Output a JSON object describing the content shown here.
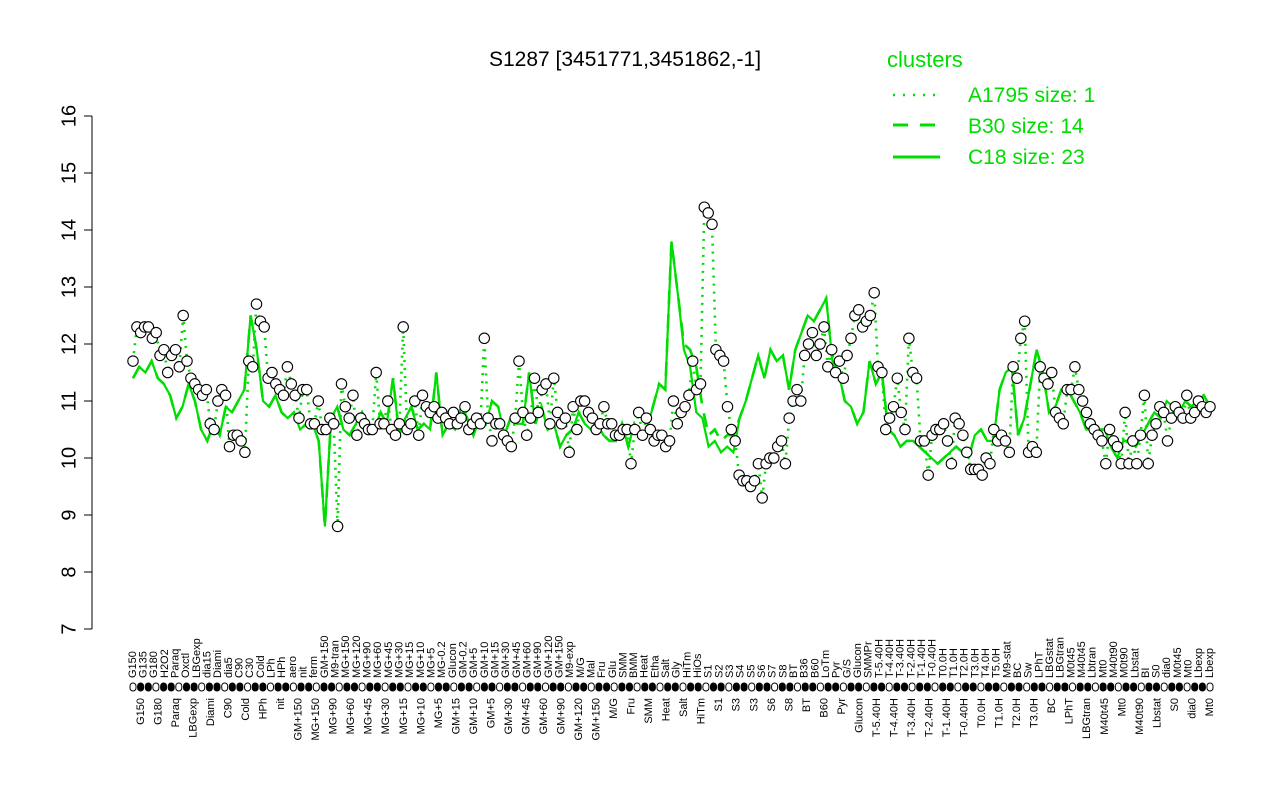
{
  "colors": {
    "line": "#00dd00",
    "points": "#000000",
    "point_fill": "#ffffff",
    "rug": "#000000"
  },
  "chart_data": {
    "type": "line",
    "title": "S1287 [3451771,3451862,-1]",
    "xlabel": "",
    "ylabel": "",
    "ylim": [
      7,
      16
    ],
    "yticks": [
      7,
      8,
      9,
      10,
      11,
      12,
      13,
      14,
      15,
      16
    ],
    "grid": false,
    "legend_position": "top-right",
    "legend": {
      "title": "clusters",
      "entries": [
        {
          "label": "A1795 size: 1",
          "style": "dotted"
        },
        {
          "label": "B30 size: 14",
          "style": "dashed"
        },
        {
          "label": "C18 size: 23",
          "style": "solid"
        }
      ]
    },
    "x_top_labels": [
      "G150",
      "G135",
      "G180",
      "H2O2",
      "Paraq",
      "Oxctl",
      "LBGexp",
      "dia15",
      "Diami",
      "dia5",
      "C90",
      "C30",
      "Cold",
      "LPh",
      "HPh",
      "aero",
      "nit",
      "ferm",
      "GM+150",
      "M9-tran",
      "MG+150",
      "MG+120",
      "MG+90",
      "MG+60",
      "MG+45",
      "MG+30",
      "MG+15",
      "MG+10",
      "MG+5",
      "MG-0.2",
      "Glucon",
      "GM-0.2",
      "GM+5",
      "GM+10",
      "GM+15",
      "GM+30",
      "GM+45",
      "GM+60",
      "GM+90",
      "GM+120",
      "GM+150",
      "M9-exp",
      "M/G",
      "Mal",
      "Fru",
      "Glu",
      "SMM",
      "BMM",
      "Heat",
      "Etha",
      "Salt",
      "Gly",
      "HiTm",
      "HiOs",
      "S1",
      "S2",
      "S3",
      "S4",
      "S5",
      "S6",
      "S7",
      "S8",
      "BT",
      "B36",
      "B60",
      "LoTm",
      "Pyr",
      "G/S",
      "Glucon",
      "SMMPr",
      "T-5.40H",
      "T-4.40H",
      "T-3.40H",
      "T-2.40H",
      "T-1.40H",
      "T-0.40H",
      "T0.0H",
      "T1.0H",
      "T2.0H",
      "T3.0H",
      "T4.0H",
      "T5.0H",
      "M9-stat",
      "BC",
      "Sw",
      "LPhT",
      "LBGstat",
      "LBGtran",
      "M0t45",
      "M40t45",
      "Lbtran",
      "Mt0",
      "M40t90",
      "M0t90",
      "Lbstat",
      "BI",
      "S0",
      "dia0",
      "M0t45",
      "Mt0",
      "Lbexp",
      "Lbexp"
    ],
    "x_bottom_labels": [
      "G150",
      "G180",
      "Paraq",
      "LBGexp",
      "Diami",
      "C90",
      "Cold",
      "HPh",
      "nit",
      "GM+150",
      "MG+150",
      "MG+90",
      "MG+60",
      "MG+45",
      "MG+30",
      "MG+15",
      "MG+10",
      "MG+5",
      "GM+15",
      "GM+10",
      "GM+5",
      "GM+30",
      "GM+45",
      "GM+60",
      "GM+90",
      "GM+120",
      "GM+150",
      "M/G",
      "Fru",
      "SMM",
      "Heat",
      "Salt",
      "HiTm",
      "S1",
      "S3",
      "S3",
      "S6",
      "S8",
      "BT",
      "B60",
      "Pyr",
      "Glucon",
      "T-5.40H",
      "T-4.40H",
      "T-3.40H",
      "T-2.40H",
      "T-1.40H",
      "T-0.40H",
      "T0.0H",
      "T1.0H",
      "T2.0H",
      "T3.0H",
      "BC",
      "LPhT",
      "LBGtran",
      "M40t45",
      "Mt0",
      "M40t90",
      "Lbstat",
      "S0",
      "dia0",
      "Mt0"
    ],
    "series": [
      {
        "name": "C18 size: 23",
        "style": "solid",
        "values": [
          11.4,
          11.6,
          11.5,
          11.7,
          11.4,
          11.3,
          11.1,
          10.7,
          10.9,
          11.3,
          11.0,
          10.5,
          10.3,
          10.6,
          10.4,
          10.9,
          10.8,
          11.0,
          11.2,
          12.5,
          11.9,
          11.0,
          10.9,
          11.1,
          10.8,
          10.7,
          10.8,
          10.5,
          10.6,
          10.6,
          10.3,
          8.8,
          10.7,
          10.9,
          10.5,
          10.4,
          10.6,
          10.8,
          10.5,
          10.5,
          10.8,
          10.6,
          11.4,
          10.4,
          10.7,
          10.9,
          10.5,
          10.6,
          10.5,
          11.5,
          10.4,
          10.6,
          10.5,
          10.9,
          10.7,
          10.4,
          10.7,
          10.6,
          11.0,
          10.9,
          10.4,
          10.7,
          10.6,
          10.6,
          11.5,
          10.6,
          10.9,
          10.5,
          10.6,
          10.2,
          10.4,
          10.5,
          10.8,
          10.6,
          10.5,
          10.6,
          10.4,
          10.3,
          10.3,
          10.6,
          10.2,
          10.6,
          10.4,
          10.5,
          10.9,
          11.3,
          11.2,
          13.8,
          12.9,
          11.9,
          11.6,
          10.8,
          10.7,
          10.2,
          10.3,
          10.1,
          10.2,
          10.1,
          10.7,
          11.0,
          11.4,
          11.8,
          11.4,
          11.9,
          11.7,
          11.8,
          11.2,
          11.9,
          12.2,
          12.5,
          12.4,
          12.6,
          12.8,
          11.7,
          11.5,
          11.0,
          10.9,
          10.6,
          10.8,
          11.7,
          11.3,
          11.5,
          10.5,
          10.4,
          10.2,
          10.3,
          10.3,
          10.2,
          10.1,
          10.0,
          9.9,
          10.0,
          10.1,
          10.2,
          10.1,
          10.0,
          10.4,
          10.5,
          10.3,
          10.3,
          11.2,
          11.5,
          11.6,
          10.4,
          10.7,
          11.3,
          11.9,
          11.5,
          10.8,
          10.9,
          11.2,
          11.2,
          11.0,
          10.8,
          10.5,
          10.5,
          10.5,
          10.5,
          10.2,
          10.0,
          10.3,
          10.3,
          10.2,
          10.4,
          10.6,
          10.8,
          10.7,
          11.0,
          10.9,
          10.8,
          11.0,
          10.9,
          11.0,
          11.1,
          10.9
        ]
      },
      {
        "name": "B30 size: 14",
        "style": "dashed",
        "values": [
          11.4,
          11.6,
          11.5,
          11.7,
          11.4,
          11.3,
          11.1,
          10.7,
          10.9,
          11.3,
          11.0,
          10.5,
          10.3,
          10.6,
          10.4,
          10.9,
          10.8,
          11.0,
          11.2,
          12.5,
          11.9,
          11.0,
          10.9,
          11.1,
          10.8,
          10.7,
          10.8,
          10.5,
          10.6,
          10.6,
          10.3,
          8.8,
          10.7,
          10.9,
          10.5,
          10.4,
          10.6,
          10.8,
          10.5,
          10.5,
          10.8,
          10.6,
          11.4,
          10.4,
          10.7,
          10.9,
          10.5,
          10.6,
          10.5,
          11.5,
          10.4,
          10.6,
          10.5,
          10.9,
          10.7,
          10.4,
          10.7,
          10.6,
          11.0,
          10.9,
          10.4,
          10.7,
          10.6,
          10.6,
          11.5,
          10.6,
          10.9,
          10.5,
          10.6,
          10.2,
          10.4,
          10.5,
          10.8,
          10.6,
          10.5,
          10.6,
          10.4,
          10.3,
          10.3,
          10.6,
          10.2,
          10.6,
          10.4,
          10.5,
          10.9,
          11.3,
          11.2,
          13.8,
          12.9,
          12.0,
          11.9,
          11.6,
          10.9,
          10.4,
          10.5,
          10.3,
          10.4,
          10.4,
          10.7,
          11.0,
          11.4,
          11.8,
          11.4,
          11.9,
          11.7,
          11.8,
          11.2,
          11.9,
          12.2,
          12.5,
          12.4,
          12.6,
          12.8,
          11.7,
          11.5,
          11.0,
          10.9,
          10.6,
          10.8,
          11.7,
          11.3,
          11.5,
          10.5,
          10.4,
          10.2,
          10.3,
          10.3,
          10.2,
          10.1,
          10.0,
          9.9,
          10.0,
          10.1,
          10.2,
          10.1,
          10.0,
          10.4,
          10.5,
          10.3,
          10.3,
          11.2,
          11.5,
          11.6,
          10.4,
          10.7,
          11.3,
          11.9,
          11.5,
          10.8,
          10.9,
          11.2,
          11.2,
          11.0,
          10.8,
          10.5,
          10.5,
          10.5,
          10.5,
          10.2,
          10.0,
          10.3,
          10.3,
          10.2,
          10.4,
          10.6,
          10.8,
          10.7,
          11.0,
          10.9,
          10.8,
          11.0,
          10.9,
          11.0,
          11.1,
          10.9
        ]
      },
      {
        "name": "A1795 size: 1",
        "style": "dotted",
        "values": [
          11.7,
          12.3,
          12.2,
          12.3,
          12.3,
          12.1,
          12.2,
          11.8,
          11.9,
          11.5,
          11.8,
          11.9,
          11.6,
          12.5,
          11.7,
          11.4,
          11.3,
          11.2,
          11.1,
          11.2,
          10.6,
          10.5,
          11.0,
          11.2,
          11.1,
          10.2,
          10.4,
          10.4,
          10.3,
          10.1,
          11.7,
          11.6,
          12.7,
          12.4,
          12.3,
          11.4,
          11.5,
          11.3,
          11.2,
          11.1,
          11.6,
          11.3,
          11.1,
          10.7,
          11.2,
          11.2,
          10.6,
          10.6,
          11.0,
          10.5,
          10.5,
          10.7,
          10.6,
          8.8,
          11.3,
          10.9,
          10.7,
          11.1,
          10.4,
          10.7,
          10.6,
          10.5,
          10.5,
          11.5,
          10.6,
          10.6,
          11.0,
          10.5,
          10.4,
          10.6,
          12.3,
          10.5,
          10.6,
          11.0,
          10.4,
          11.1,
          10.9,
          10.8,
          10.9,
          10.7,
          10.8,
          10.7,
          10.6,
          10.8,
          10.6,
          10.7,
          10.9,
          10.5,
          10.6,
          10.7,
          10.6,
          12.1,
          10.7,
          10.3,
          10.6,
          10.6,
          10.4,
          10.3,
          10.2,
          10.7,
          11.7,
          10.8,
          10.4,
          10.7,
          11.4,
          10.8,
          11.2,
          11.3,
          10.6,
          11.4,
          10.8,
          10.6,
          10.7,
          10.1,
          10.9,
          10.5,
          11.0,
          11.0,
          10.8,
          10.7,
          10.5,
          10.6,
          10.9,
          10.6,
          10.6,
          10.4,
          10.4,
          10.5,
          10.5,
          9.9,
          10.5,
          10.8,
          10.4,
          10.7,
          10.5,
          10.3,
          10.4,
          10.4,
          10.2,
          10.3,
          11.0,
          10.6,
          10.8,
          10.9,
          11.1,
          11.7,
          11.2,
          11.3,
          14.4,
          14.3,
          14.1,
          11.9,
          11.8,
          11.7,
          10.9,
          10.5,
          10.3,
          9.7,
          9.6,
          9.6,
          9.5,
          9.6,
          9.9,
          9.3,
          9.9,
          10.0,
          10.0,
          10.2,
          10.3,
          9.9,
          10.7,
          11.0,
          11.2,
          11.0,
          11.8,
          12.0,
          12.2,
          11.8,
          12.0,
          12.3,
          11.6,
          11.9,
          11.5,
          11.7,
          11.4,
          11.8,
          12.1,
          12.5,
          12.6,
          12.3,
          12.4,
          12.5,
          12.9,
          11.6,
          11.5,
          10.5,
          10.7,
          10.9,
          11.4,
          10.8,
          10.5,
          12.1,
          11.5,
          11.4,
          10.3,
          10.3,
          9.7,
          10.4,
          10.5,
          10.5,
          10.6,
          10.3,
          9.9,
          10.7,
          10.6,
          10.4,
          10.1,
          9.8,
          9.8,
          9.8,
          9.7,
          10.0,
          9.9,
          10.5,
          10.3,
          10.4,
          10.3,
          10.1,
          11.6,
          11.4,
          12.1,
          12.4,
          10.1,
          10.2,
          10.1,
          11.6,
          11.4,
          11.3,
          11.5,
          10.8,
          10.7,
          10.6,
          11.2,
          11.2,
          11.6,
          11.2,
          11.0,
          10.8,
          10.6,
          10.5,
          10.4,
          10.3,
          9.9,
          10.5,
          10.3,
          10.2,
          9.9,
          10.8,
          9.9,
          10.3,
          9.9,
          10.4,
          11.1,
          9.9,
          10.4,
          10.6,
          10.9,
          10.8,
          10.3,
          10.7,
          10.9,
          10.8,
          10.7,
          11.1,
          10.7,
          10.8,
          11.0,
          10.9,
          10.8,
          10.9
        ]
      }
    ],
    "point_values": [
      11.7,
      12.3,
      12.2,
      12.3,
      12.3,
      12.1,
      12.2,
      11.8,
      11.9,
      11.5,
      11.8,
      11.9,
      11.6,
      12.5,
      11.7,
      11.4,
      11.3,
      11.2,
      11.1,
      11.2,
      10.6,
      10.5,
      11.0,
      11.2,
      11.1,
      10.2,
      10.4,
      10.4,
      10.3,
      10.1,
      11.7,
      11.6,
      12.7,
      12.4,
      12.3,
      11.4,
      11.5,
      11.3,
      11.2,
      11.1,
      11.6,
      11.3,
      11.1,
      10.7,
      11.2,
      11.2,
      10.6,
      10.6,
      11.0,
      10.5,
      10.5,
      10.7,
      10.6,
      8.8,
      11.3,
      10.9,
      10.7,
      11.1,
      10.4,
      10.7,
      10.6,
      10.5,
      10.5,
      11.5,
      10.6,
      10.6,
      11.0,
      10.5,
      10.4,
      10.6,
      12.3,
      10.5,
      10.6,
      11.0,
      10.4,
      11.1,
      10.9,
      10.8,
      10.9,
      10.7,
      10.8,
      10.7,
      10.6,
      10.8,
      10.6,
      10.7,
      10.9,
      10.5,
      10.6,
      10.7,
      10.6,
      12.1,
      10.7,
      10.3,
      10.6,
      10.6,
      10.4,
      10.3,
      10.2,
      10.7,
      11.7,
      10.8,
      10.4,
      10.7,
      11.4,
      10.8,
      11.2,
      11.3,
      10.6,
      11.4,
      10.8,
      10.6,
      10.7,
      10.1,
      10.9,
      10.5,
      11.0,
      11.0,
      10.8,
      10.7,
      10.5,
      10.6,
      10.9,
      10.6,
      10.6,
      10.4,
      10.4,
      10.5,
      10.5,
      9.9,
      10.5,
      10.8,
      10.4,
      10.7,
      10.5,
      10.3,
      10.4,
      10.4,
      10.2,
      10.3,
      11.0,
      10.6,
      10.8,
      10.9,
      11.1,
      11.7,
      11.2,
      11.3,
      14.4,
      14.3,
      14.1,
      11.9,
      11.8,
      11.7,
      10.9,
      10.5,
      10.3,
      9.7,
      9.6,
      9.6,
      9.5,
      9.6,
      9.9,
      9.3,
      9.9,
      10.0,
      10.0,
      10.2,
      10.3,
      9.9,
      10.7,
      11.0,
      11.2,
      11.0,
      11.8,
      12.0,
      12.2,
      11.8,
      12.0,
      12.3,
      11.6,
      11.9,
      11.5,
      11.7,
      11.4,
      11.8,
      12.1,
      12.5,
      12.6,
      12.3,
      12.4,
      12.5,
      12.9,
      11.6,
      11.5,
      10.5,
      10.7,
      10.9,
      11.4,
      10.8,
      10.5,
      12.1,
      11.5,
      11.4,
      10.3,
      10.3,
      9.7,
      10.4,
      10.5,
      10.5,
      10.6,
      10.3,
      9.9,
      10.7,
      10.6,
      10.4,
      10.1,
      9.8,
      9.8,
      9.8,
      9.7,
      10.0,
      9.9,
      10.5,
      10.3,
      10.4,
      10.3,
      10.1,
      11.6,
      11.4,
      12.1,
      12.4,
      10.1,
      10.2,
      10.1,
      11.6,
      11.4,
      11.3,
      11.5,
      10.8,
      10.7,
      10.6,
      11.2,
      11.2,
      11.6,
      11.2,
      11.0,
      10.8,
      10.6,
      10.5,
      10.4,
      10.3,
      9.9,
      10.5,
      10.3,
      10.2,
      9.9,
      10.8,
      9.9,
      10.3,
      9.9,
      10.4,
      11.1,
      9.9,
      10.4,
      10.6,
      10.9,
      10.8,
      10.3,
      10.7,
      10.9,
      10.8,
      10.7,
      11.1,
      10.7,
      10.8,
      11.0,
      10.9,
      10.8,
      10.9
    ]
  }
}
